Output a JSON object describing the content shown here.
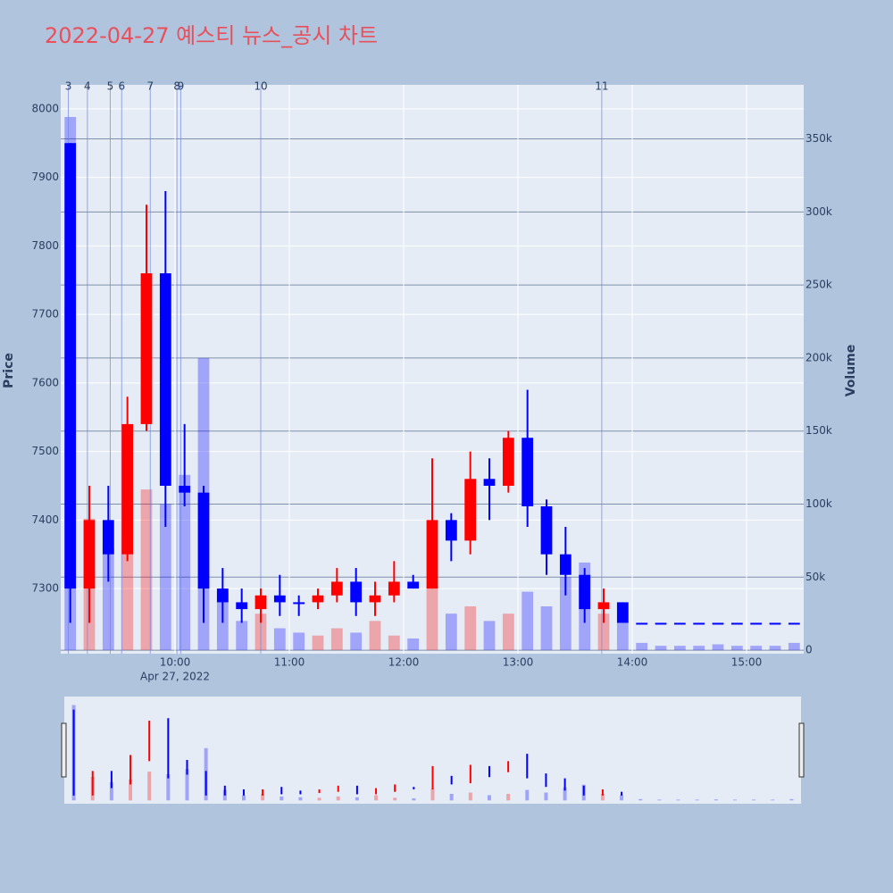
{
  "chart_data": {
    "type": "candlestick",
    "title": "2022-04-27 예스티 뉴스_공시 차트",
    "y_label": "Price",
    "y2_label": "Volume",
    "up_color": "#ff0000",
    "down_color": "#0000ff",
    "x": [
      "2022-04-27 09:00",
      "2022-04-27 09:10",
      "2022-04-27 09:20",
      "2022-04-27 09:30",
      "2022-04-27 09:40",
      "2022-04-27 09:50",
      "2022-04-27 10:00",
      "2022-04-27 10:10",
      "2022-04-27 10:20",
      "2022-04-27 10:30",
      "2022-04-27 10:40",
      "2022-04-27 10:50",
      "2022-04-27 11:00",
      "2022-04-27 11:10",
      "2022-04-27 11:20",
      "2022-04-27 11:30",
      "2022-04-27 11:40",
      "2022-04-27 11:50",
      "2022-04-27 12:00",
      "2022-04-27 12:10",
      "2022-04-27 12:20",
      "2022-04-27 12:30",
      "2022-04-27 12:40",
      "2022-04-27 12:50",
      "2022-04-27 13:00",
      "2022-04-27 13:10",
      "2022-04-27 13:20",
      "2022-04-27 13:30",
      "2022-04-27 13:40",
      "2022-04-27 13:50",
      "2022-04-27 14:00",
      "2022-04-27 14:10",
      "2022-04-27 14:20",
      "2022-04-27 14:30",
      "2022-04-27 14:40",
      "2022-04-27 14:50",
      "2022-04-27 15:00",
      "2022-04-27 15:10",
      "2022-04-27 15:20"
    ],
    "open": [
      7950,
      7300,
      7400,
      7350,
      7540,
      7760,
      7450,
      7440,
      7300,
      7280,
      7270,
      7290,
      7280,
      7280,
      7290,
      7310,
      7280,
      7290,
      7310,
      7300,
      7400,
      7370,
      7460,
      7450,
      7520,
      7420,
      7350,
      7320,
      7270,
      7280,
      7250,
      7250,
      7250,
      7250,
      7250,
      7250,
      7250,
      7250,
      7250
    ],
    "high": [
      7950,
      7450,
      7450,
      7580,
      7860,
      7880,
      7540,
      7450,
      7330,
      7300,
      7300,
      7320,
      7290,
      7300,
      7330,
      7330,
      7310,
      7340,
      7320,
      7490,
      7410,
      7500,
      7490,
      7530,
      7590,
      7430,
      7390,
      7330,
      7300,
      7280,
      7250,
      7250,
      7250,
      7250,
      7250,
      7250,
      7250,
      7250,
      7250
    ],
    "low": [
      7250,
      7250,
      7310,
      7340,
      7530,
      7390,
      7420,
      7250,
      7250,
      7250,
      7250,
      7260,
      7260,
      7270,
      7280,
      7260,
      7260,
      7280,
      7300,
      7300,
      7340,
      7350,
      7400,
      7440,
      7390,
      7320,
      7290,
      7250,
      7250,
      7250,
      7250,
      7250,
      7250,
      7250,
      7250,
      7250,
      7250,
      7250,
      7250
    ],
    "close": [
      7300,
      7400,
      7350,
      7540,
      7760,
      7450,
      7440,
      7300,
      7280,
      7270,
      7290,
      7280,
      7280,
      7290,
      7310,
      7280,
      7290,
      7310,
      7300,
      7400,
      7370,
      7460,
      7450,
      7520,
      7420,
      7350,
      7320,
      7270,
      7280,
      7250,
      7250,
      7250,
      7250,
      7250,
      7250,
      7250,
      7250,
      7250,
      7250
    ],
    "volume": [
      365000,
      90000,
      70000,
      80000,
      110000,
      100000,
      120000,
      200000,
      40000,
      20000,
      25000,
      15000,
      12000,
      10000,
      15000,
      12000,
      20000,
      10000,
      8000,
      45000,
      25000,
      30000,
      20000,
      25000,
      40000,
      30000,
      50000,
      60000,
      25000,
      20000,
      5000,
      3000,
      3000,
      3000,
      4000,
      3000,
      3000,
      3000,
      5000
    ],
    "events": [
      {
        "x": "2022-04-27 09:04",
        "label": "3"
      },
      {
        "x": "2022-04-27 09:14",
        "label": "4"
      },
      {
        "x": "2022-04-27 09:26",
        "label": "5"
      },
      {
        "x": "2022-04-27 09:32",
        "label": "6"
      },
      {
        "x": "2022-04-27 09:47",
        "label": "7"
      },
      {
        "x": "2022-04-27 10:01",
        "label": "8"
      },
      {
        "x": "2022-04-27 10:03",
        "label": "9"
      },
      {
        "x": "2022-04-27 10:45",
        "label": "10"
      },
      {
        "x": "2022-04-27 13:44",
        "label": "11"
      }
    ],
    "xlim": [
      "2022-04-27 09:00",
      "2022-04-27 15:30"
    ],
    "xticks": [
      {
        "value": "2022-04-27 10:00",
        "label": "10:00"
      },
      {
        "value": "2022-04-27 11:00",
        "label": "11:00"
      },
      {
        "value": "2022-04-27 12:00",
        "label": "12:00"
      },
      {
        "value": "2022-04-27 13:00",
        "label": "13:00"
      },
      {
        "value": "2022-04-27 14:00",
        "label": "14:00"
      },
      {
        "value": "2022-04-27 15:00",
        "label": "15:00"
      }
    ],
    "x_date_label": "Apr 27, 2022",
    "ylim": [
      7205,
      8035
    ],
    "yticks": [
      7300,
      7400,
      7500,
      7600,
      7700,
      7800,
      7900,
      8000
    ],
    "y2lim": [
      -2400,
      387000
    ],
    "y2ticks": [
      0,
      {
        "value": 50000,
        "label": "50k"
      },
      {
        "value": 100000,
        "label": "100k"
      },
      {
        "value": 150000,
        "label": "150k"
      },
      {
        "value": 200000,
        "label": "200k"
      },
      {
        "value": 250000,
        "label": "250k"
      },
      {
        "value": 300000,
        "label": "300k"
      },
      {
        "value": 350000,
        "label": "350k"
      }
    ],
    "grid": true
  }
}
